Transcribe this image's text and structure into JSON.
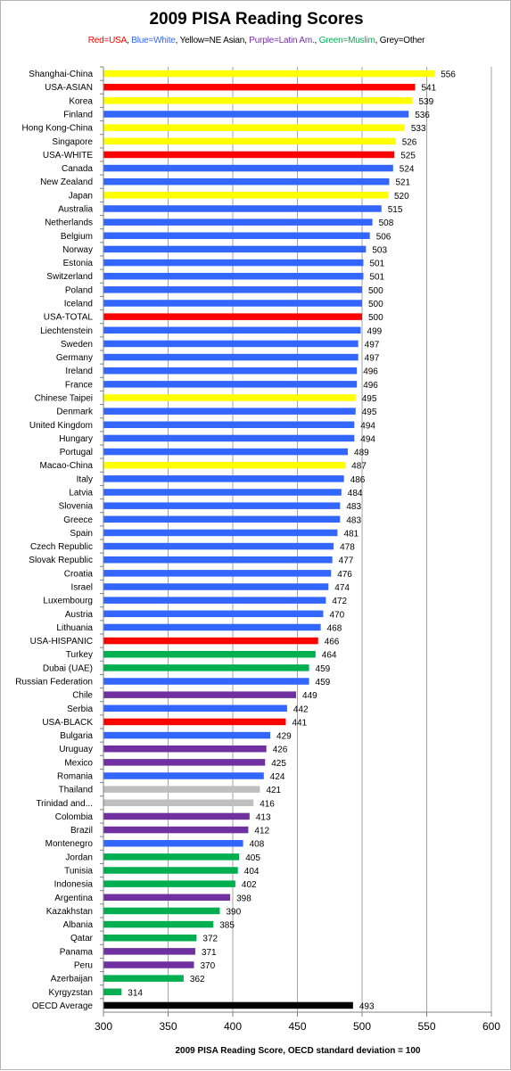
{
  "chart_data": {
    "type": "bar",
    "orientation": "horizontal",
    "title": "2009 PISA Reading Scores",
    "subtitle": [
      {
        "text": "Red=USA",
        "color": "#ff0000"
      },
      {
        "text": ", ",
        "color": "#000000"
      },
      {
        "text": "Blue=White",
        "color": "#3366ff"
      },
      {
        "text": ", Yellow=NE Asian, ",
        "color": "#000000"
      },
      {
        "text": "Purple=Latin Am.",
        "color": "#7030a0"
      },
      {
        "text": ", ",
        "color": "#000000"
      },
      {
        "text": "Green=Muslim",
        "color": "#00b050"
      },
      {
        "text": ", Grey=Other",
        "color": "#000000"
      }
    ],
    "xlabel": "2009 PISA Reading Score, OECD standard deviation = 100",
    "xlim": [
      300,
      600
    ],
    "xticks": [
      300,
      350,
      400,
      450,
      500,
      550,
      600
    ],
    "grid": true,
    "colors": {
      "usa": "#ff0000",
      "white": "#3366ff",
      "asian": "#ffff00",
      "latin": "#7030a0",
      "muslim": "#00b050",
      "other": "#bfbfbf",
      "oecd": "#000000"
    },
    "categories": [
      {
        "label": "Shanghai-China",
        "value": 556,
        "group": "asian"
      },
      {
        "label": "USA-ASIAN",
        "value": 541,
        "group": "usa"
      },
      {
        "label": "Korea",
        "value": 539,
        "group": "asian"
      },
      {
        "label": "Finland",
        "value": 536,
        "group": "white"
      },
      {
        "label": "Hong Kong-China",
        "value": 533,
        "group": "asian"
      },
      {
        "label": "Singapore",
        "value": 526,
        "group": "asian"
      },
      {
        "label": "USA-WHITE",
        "value": 525,
        "group": "usa"
      },
      {
        "label": "Canada",
        "value": 524,
        "group": "white"
      },
      {
        "label": "New Zealand",
        "value": 521,
        "group": "white"
      },
      {
        "label": "Japan",
        "value": 520,
        "group": "asian"
      },
      {
        "label": "Australia",
        "value": 515,
        "group": "white"
      },
      {
        "label": "Netherlands",
        "value": 508,
        "group": "white"
      },
      {
        "label": "Belgium",
        "value": 506,
        "group": "white"
      },
      {
        "label": "Norway",
        "value": 503,
        "group": "white"
      },
      {
        "label": "Estonia",
        "value": 501,
        "group": "white"
      },
      {
        "label": "Switzerland",
        "value": 501,
        "group": "white"
      },
      {
        "label": "Poland",
        "value": 500,
        "group": "white"
      },
      {
        "label": "Iceland",
        "value": 500,
        "group": "white"
      },
      {
        "label": "USA-TOTAL",
        "value": 500,
        "group": "usa"
      },
      {
        "label": "Liechtenstein",
        "value": 499,
        "group": "white"
      },
      {
        "label": "Sweden",
        "value": 497,
        "group": "white"
      },
      {
        "label": "Germany",
        "value": 497,
        "group": "white"
      },
      {
        "label": "Ireland",
        "value": 496,
        "group": "white"
      },
      {
        "label": "France",
        "value": 496,
        "group": "white"
      },
      {
        "label": "Chinese Taipei",
        "value": 495,
        "group": "asian"
      },
      {
        "label": "Denmark",
        "value": 495,
        "group": "white"
      },
      {
        "label": "United Kingdom",
        "value": 494,
        "group": "white"
      },
      {
        "label": "Hungary",
        "value": 494,
        "group": "white"
      },
      {
        "label": "Portugal",
        "value": 489,
        "group": "white"
      },
      {
        "label": "Macao-China",
        "value": 487,
        "group": "asian"
      },
      {
        "label": "Italy",
        "value": 486,
        "group": "white"
      },
      {
        "label": "Latvia",
        "value": 484,
        "group": "white"
      },
      {
        "label": "Slovenia",
        "value": 483,
        "group": "white"
      },
      {
        "label": "Greece",
        "value": 483,
        "group": "white"
      },
      {
        "label": "Spain",
        "value": 481,
        "group": "white"
      },
      {
        "label": "Czech Republic",
        "value": 478,
        "group": "white"
      },
      {
        "label": "Slovak Republic",
        "value": 477,
        "group": "white"
      },
      {
        "label": "Croatia",
        "value": 476,
        "group": "white"
      },
      {
        "label": "Israel",
        "value": 474,
        "group": "white"
      },
      {
        "label": "Luxembourg",
        "value": 472,
        "group": "white"
      },
      {
        "label": "Austria",
        "value": 470,
        "group": "white"
      },
      {
        "label": "Lithuania",
        "value": 468,
        "group": "white"
      },
      {
        "label": "USA-HISPANIC",
        "value": 466,
        "group": "usa"
      },
      {
        "label": "Turkey",
        "value": 464,
        "group": "muslim"
      },
      {
        "label": "Dubai (UAE)",
        "value": 459,
        "group": "muslim"
      },
      {
        "label": "Russian Federation",
        "value": 459,
        "group": "white"
      },
      {
        "label": "Chile",
        "value": 449,
        "group": "latin"
      },
      {
        "label": "Serbia",
        "value": 442,
        "group": "white"
      },
      {
        "label": "USA-BLACK",
        "value": 441,
        "group": "usa"
      },
      {
        "label": "Bulgaria",
        "value": 429,
        "group": "white"
      },
      {
        "label": "Uruguay",
        "value": 426,
        "group": "latin"
      },
      {
        "label": "Mexico",
        "value": 425,
        "group": "latin"
      },
      {
        "label": "Romania",
        "value": 424,
        "group": "white"
      },
      {
        "label": "Thailand",
        "value": 421,
        "group": "other"
      },
      {
        "label": "Trinidad and...",
        "value": 416,
        "group": "other"
      },
      {
        "label": "Colombia",
        "value": 413,
        "group": "latin"
      },
      {
        "label": "Brazil",
        "value": 412,
        "group": "latin"
      },
      {
        "label": "Montenegro",
        "value": 408,
        "group": "white"
      },
      {
        "label": "Jordan",
        "value": 405,
        "group": "muslim"
      },
      {
        "label": "Tunisia",
        "value": 404,
        "group": "muslim"
      },
      {
        "label": "Indonesia",
        "value": 402,
        "group": "muslim"
      },
      {
        "label": "Argentina",
        "value": 398,
        "group": "latin"
      },
      {
        "label": "Kazakhstan",
        "value": 390,
        "group": "muslim"
      },
      {
        "label": "Albania",
        "value": 385,
        "group": "muslim"
      },
      {
        "label": "Qatar",
        "value": 372,
        "group": "muslim"
      },
      {
        "label": "Panama",
        "value": 371,
        "group": "latin"
      },
      {
        "label": "Peru",
        "value": 370,
        "group": "latin"
      },
      {
        "label": "Azerbaijan",
        "value": 362,
        "group": "muslim"
      },
      {
        "label": "Kyrgyzstan",
        "value": 314,
        "group": "muslim"
      },
      {
        "label": "OECD Average",
        "value": 493,
        "group": "oecd"
      }
    ]
  }
}
